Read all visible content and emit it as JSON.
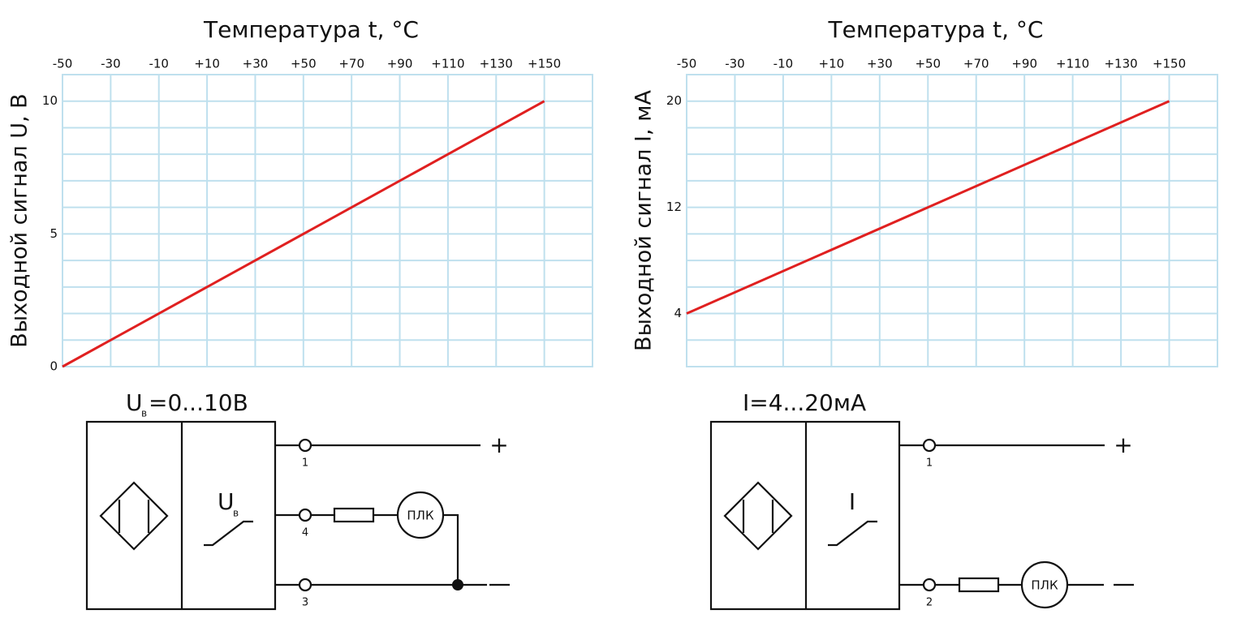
{
  "chart_data": [
    {
      "type": "line",
      "title": "Температура t, °C",
      "y_label": "Выходной сигнал U, В",
      "x": [
        -50,
        150
      ],
      "series": [
        {
          "color": "#e02020",
          "values": [
            0,
            10
          ]
        }
      ],
      "xlim": [
        -50,
        170
      ],
      "xticks": [
        -50,
        -30,
        -10,
        {
          "value": 10,
          "label": "+10"
        },
        {
          "value": 30,
          "label": "+30"
        },
        {
          "value": 50,
          "label": "+50"
        },
        {
          "value": 70,
          "label": "+70"
        },
        {
          "value": 90,
          "label": "+90"
        },
        {
          "value": 110,
          "label": "+110"
        },
        {
          "value": 130,
          "label": "+130"
        },
        {
          "value": 150,
          "label": "+150"
        }
      ],
      "ylim": [
        0,
        11
      ],
      "yticks": [
        0,
        5,
        10
      ],
      "ygrid": [
        0,
        1,
        2,
        3,
        4,
        5,
        6,
        7,
        8,
        9,
        10,
        11
      ],
      "grid": true,
      "grid_color": "#bfe0ee"
    },
    {
      "type": "line",
      "title": "Температура t, °C",
      "y_label": "Выходной сигнал I, мА",
      "x": [
        -50,
        150
      ],
      "series": [
        {
          "color": "#e02020",
          "values": [
            4,
            20
          ]
        }
      ],
      "xlim": [
        -50,
        170
      ],
      "xticks": [
        -50,
        -30,
        -10,
        {
          "value": 10,
          "label": "+10"
        },
        {
          "value": 30,
          "label": "+30"
        },
        {
          "value": 50,
          "label": "+50"
        },
        {
          "value": 70,
          "label": "+70"
        },
        {
          "value": 90,
          "label": "+90"
        },
        {
          "value": 110,
          "label": "+110"
        },
        {
          "value": 130,
          "label": "+130"
        },
        {
          "value": 150,
          "label": "+150"
        }
      ],
      "ylim": [
        0,
        22
      ],
      "yticks": [
        4,
        12,
        20
      ],
      "ygrid": [
        0,
        2,
        4,
        6,
        8,
        10,
        12,
        14,
        16,
        18,
        20,
        22
      ],
      "grid": true,
      "grid_color": "#bfe0ee"
    }
  ],
  "diagrams": [
    {
      "title_main": "U",
      "title_sub": "в",
      "title_rest": "=0...10В",
      "switch_main": "U",
      "switch_sub": "в",
      "terminals": [
        "1",
        "4",
        "3"
      ],
      "plc": "ПЛК",
      "plus": "+"
    },
    {
      "title": "I=4...20мА",
      "switch_main": "I",
      "terminals": [
        "1",
        "2"
      ],
      "plc": "ПЛК",
      "plus": "+"
    }
  ]
}
